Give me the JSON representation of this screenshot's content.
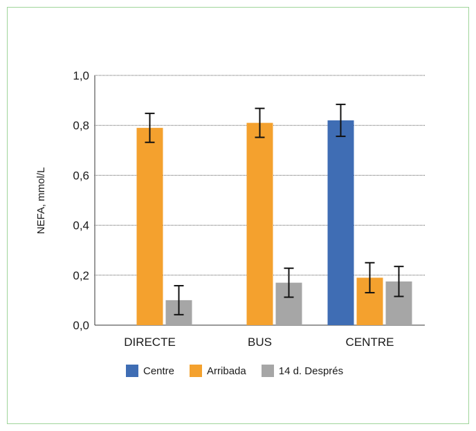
{
  "chart_data": {
    "type": "bar",
    "categories": [
      "DIRECTE",
      "BUS",
      "CENTRE"
    ],
    "series": [
      {
        "name": "Centre",
        "color": "#3f6db4",
        "values": [
          null,
          null,
          0.82
        ],
        "error": [
          null,
          null,
          0.064
        ]
      },
      {
        "name": "Arribada",
        "color": "#f4a12e",
        "values": [
          0.79,
          0.81,
          0.19
        ],
        "error": [
          null,
          null,
          null
        ],
        "err": [
          0.058,
          0.058,
          0.06
        ]
      },
      {
        "name": "14 d. Després",
        "color": "#a6a6a6",
        "values": [
          0.1,
          0.17,
          0.175
        ],
        "err": [
          0.058,
          0.058,
          0.06
        ]
      }
    ],
    "ylabel": "NEFA, mmol/L",
    "ylim": [
      0,
      1.0
    ],
    "yticks": [
      "0,0",
      "0,2",
      "0,4",
      "0,6",
      "0,8",
      "1,0"
    ],
    "ytick_values": [
      0,
      0.2,
      0.4,
      0.6,
      0.8,
      1.0
    ],
    "grid": true,
    "legend_position": "bottom"
  }
}
